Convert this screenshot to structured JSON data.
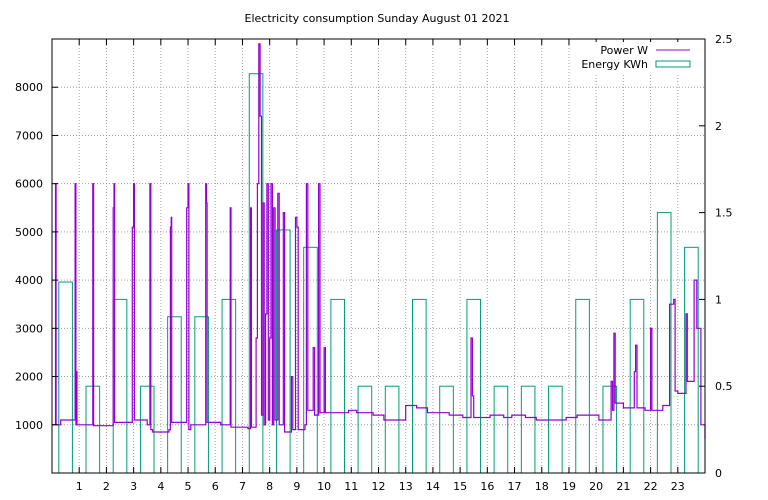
{
  "chart_data": {
    "type": "line",
    "title": "Electricity consumption Sunday August 01 2021",
    "grid": true,
    "legend_position": "top-right",
    "x_ticks": [
      "1",
      "2",
      "3",
      "4",
      "5",
      "6",
      "7",
      "8",
      "9",
      "10",
      "11",
      "12",
      "13",
      "14",
      "15",
      "16",
      "17",
      "18",
      "19",
      "20",
      "21",
      "22",
      "23"
    ],
    "xlim": [
      0,
      24
    ],
    "y_left": {
      "ylim": [
        0,
        9000
      ],
      "ticks": [
        "1000",
        "2000",
        "3000",
        "4000",
        "5000",
        "6000",
        "7000",
        "8000"
      ]
    },
    "y_right": {
      "ylim": [
        0,
        2.5
      ],
      "ticks": [
        "0",
        "0.5",
        "1",
        "1.5",
        "2",
        "2.5"
      ]
    },
    "series": [
      {
        "name": "Power W",
        "color": "#9400d3",
        "axis": "left",
        "style": "step-line",
        "points": [
          [
            0.0,
            1000
          ],
          [
            0.12,
            1000
          ],
          [
            0.13,
            6000
          ],
          [
            0.15,
            1000
          ],
          [
            0.3,
            1000
          ],
          [
            0.32,
            1100
          ],
          [
            0.8,
            1100
          ],
          [
            0.85,
            6000
          ],
          [
            0.88,
            1000
          ],
          [
            0.9,
            2100
          ],
          [
            0.92,
            1000
          ],
          [
            1.4,
            1000
          ],
          [
            1.5,
            6000
          ],
          [
            1.53,
            980
          ],
          [
            2.2,
            980
          ],
          [
            2.25,
            5500
          ],
          [
            2.28,
            6000
          ],
          [
            2.3,
            1050
          ],
          [
            2.9,
            1050
          ],
          [
            2.95,
            5100
          ],
          [
            3.0,
            6000
          ],
          [
            3.03,
            1100
          ],
          [
            3.4,
            1100
          ],
          [
            3.5,
            1000
          ],
          [
            3.6,
            6000
          ],
          [
            3.63,
            900
          ],
          [
            3.7,
            850
          ],
          [
            4.3,
            900
          ],
          [
            4.35,
            5100
          ],
          [
            4.38,
            5300
          ],
          [
            4.4,
            1050
          ],
          [
            4.9,
            1050
          ],
          [
            4.95,
            5500
          ],
          [
            5.0,
            6000
          ],
          [
            5.03,
            900
          ],
          [
            5.1,
            1000
          ],
          [
            5.6,
            1000
          ],
          [
            5.65,
            6000
          ],
          [
            5.68,
            5600
          ],
          [
            5.7,
            1050
          ],
          [
            6.1,
            1050
          ],
          [
            6.2,
            1000
          ],
          [
            6.5,
            1000
          ],
          [
            6.55,
            5500
          ],
          [
            6.58,
            950
          ],
          [
            7.2,
            920
          ],
          [
            7.3,
            5500
          ],
          [
            7.33,
            950
          ],
          [
            7.5,
            2800
          ],
          [
            7.55,
            6000
          ],
          [
            7.6,
            8900
          ],
          [
            7.65,
            7400
          ],
          [
            7.7,
            1200
          ],
          [
            7.75,
            5600
          ],
          [
            7.8,
            1000
          ],
          [
            7.85,
            3300
          ],
          [
            7.9,
            6000
          ],
          [
            7.95,
            1100
          ],
          [
            8.0,
            2800
          ],
          [
            8.05,
            6000
          ],
          [
            8.1,
            1000
          ],
          [
            8.15,
            5500
          ],
          [
            8.2,
            1100
          ],
          [
            8.3,
            5800
          ],
          [
            8.35,
            1000
          ],
          [
            8.5,
            5400
          ],
          [
            8.55,
            850
          ],
          [
            8.7,
            850
          ],
          [
            8.8,
            2000
          ],
          [
            8.85,
            900
          ],
          [
            8.95,
            5300
          ],
          [
            9.0,
            5100
          ],
          [
            9.05,
            900
          ],
          [
            9.3,
            1000
          ],
          [
            9.35,
            6000
          ],
          [
            9.4,
            1300
          ],
          [
            9.6,
            2600
          ],
          [
            9.65,
            1200
          ],
          [
            9.8,
            6000
          ],
          [
            9.85,
            1250
          ],
          [
            10.0,
            2600
          ],
          [
            10.05,
            1250
          ],
          [
            10.8,
            1250
          ],
          [
            10.9,
            1300
          ],
          [
            11.2,
            1250
          ],
          [
            11.8,
            1200
          ],
          [
            12.2,
            1100
          ],
          [
            12.9,
            1100
          ],
          [
            13.0,
            1400
          ],
          [
            13.4,
            1350
          ],
          [
            13.8,
            1250
          ],
          [
            14.6,
            1200
          ],
          [
            15.1,
            1150
          ],
          [
            15.4,
            2800
          ],
          [
            15.45,
            1600
          ],
          [
            15.5,
            1150
          ],
          [
            16.1,
            1200
          ],
          [
            16.6,
            1150
          ],
          [
            16.9,
            1200
          ],
          [
            17.4,
            1150
          ],
          [
            17.8,
            1100
          ],
          [
            18.5,
            1100
          ],
          [
            18.9,
            1150
          ],
          [
            19.3,
            1200
          ],
          [
            20.1,
            1100
          ],
          [
            20.5,
            1100
          ],
          [
            20.55,
            1900
          ],
          [
            20.6,
            1300
          ],
          [
            20.65,
            2900
          ],
          [
            20.7,
            1450
          ],
          [
            21.0,
            1350
          ],
          [
            21.4,
            2100
          ],
          [
            21.45,
            2650
          ],
          [
            21.5,
            1350
          ],
          [
            21.8,
            1300
          ],
          [
            22.0,
            3000
          ],
          [
            22.05,
            1300
          ],
          [
            22.3,
            1300
          ],
          [
            22.45,
            1400
          ],
          [
            22.7,
            3500
          ],
          [
            22.85,
            3600
          ],
          [
            22.9,
            1700
          ],
          [
            23.0,
            1650
          ],
          [
            23.2,
            1650
          ],
          [
            23.3,
            3300
          ],
          [
            23.35,
            1900
          ],
          [
            23.5,
            1900
          ],
          [
            23.6,
            4000
          ],
          [
            23.7,
            3000
          ],
          [
            23.8,
            3000
          ],
          [
            23.85,
            1000
          ],
          [
            24.0,
            700
          ]
        ]
      },
      {
        "name": "Energy KWh",
        "color": "#009e73",
        "axis": "right",
        "style": "boxes",
        "x": [
          0,
          1,
          2,
          3,
          4,
          5,
          6,
          7,
          8,
          9,
          10,
          11,
          12,
          13,
          14,
          15,
          16,
          17,
          18,
          19,
          20,
          21,
          22,
          23
        ],
        "values": [
          1.1,
          0.5,
          1.0,
          0.5,
          0.9,
          0.9,
          1.0,
          2.3,
          1.4,
          1.3,
          1.0,
          0.5,
          0.5,
          1.0,
          0.5,
          1.0,
          0.5,
          0.5,
          0.5,
          1.0,
          0.5,
          1.0,
          1.5,
          1.3
        ]
      }
    ]
  }
}
